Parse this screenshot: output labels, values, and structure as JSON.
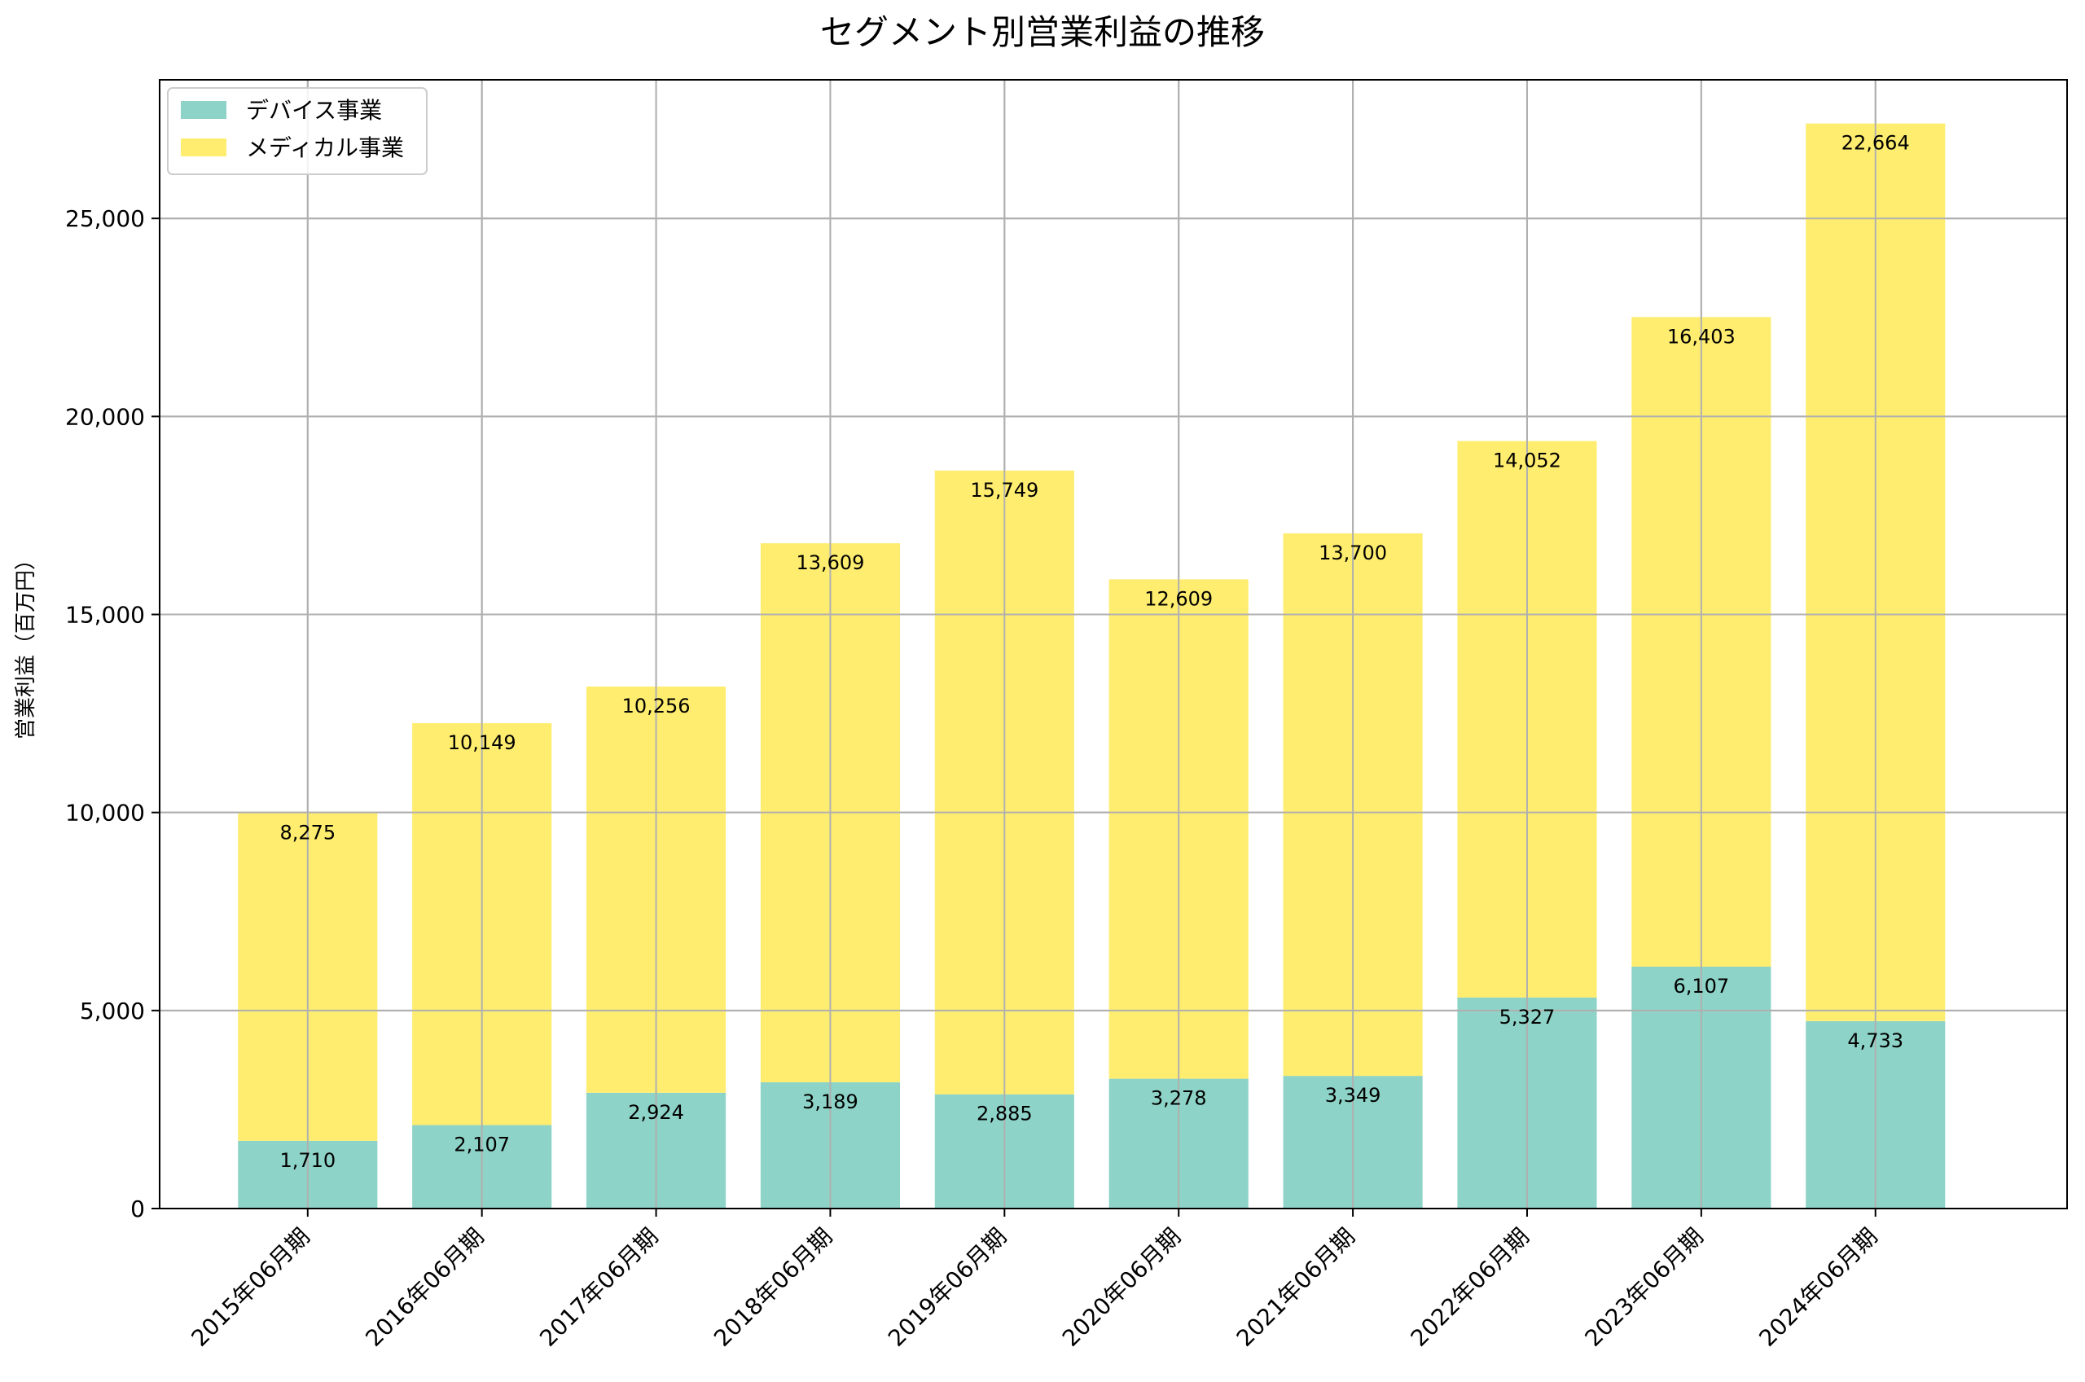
{
  "chart_data": {
    "type": "bar",
    "stacked": true,
    "title": "セグメント別営業利益の推移",
    "xlabel": "",
    "ylabel": "営業利益（百万円）",
    "ylim": [
      0,
      28500
    ],
    "yticks": [
      0,
      5000,
      10000,
      15000,
      20000,
      25000
    ],
    "ytick_labels": [
      "0",
      "5,000",
      "10,000",
      "15,000",
      "20,000",
      "25,000"
    ],
    "grid": true,
    "legend_position": "top-left",
    "categories": [
      "2015年06月期",
      "2016年06月期",
      "2017年06月期",
      "2018年06月期",
      "2019年06月期",
      "2020年06月期",
      "2021年06月期",
      "2022年06月期",
      "2023年06月期",
      "2024年06月期"
    ],
    "series": [
      {
        "name": "デバイス事業",
        "color": "#8dd3c7",
        "values": [
          1710,
          2107,
          2924,
          3189,
          2885,
          3278,
          3349,
          5327,
          6107,
          4733
        ],
        "labels": [
          "1,710",
          "2,107",
          "2,924",
          "3,189",
          "2,885",
          "3,278",
          "3,349",
          "5,327",
          "6,107",
          "4,733"
        ]
      },
      {
        "name": "メディカル事業",
        "color": "#ffed6f",
        "values": [
          8275,
          10149,
          10256,
          13609,
          15749,
          12609,
          13700,
          14052,
          16403,
          22664
        ],
        "labels": [
          "8,275",
          "10,149",
          "10,256",
          "13,609",
          "15,749",
          "12,609",
          "13,700",
          "14,052",
          "16,403",
          "22,664"
        ]
      }
    ]
  }
}
